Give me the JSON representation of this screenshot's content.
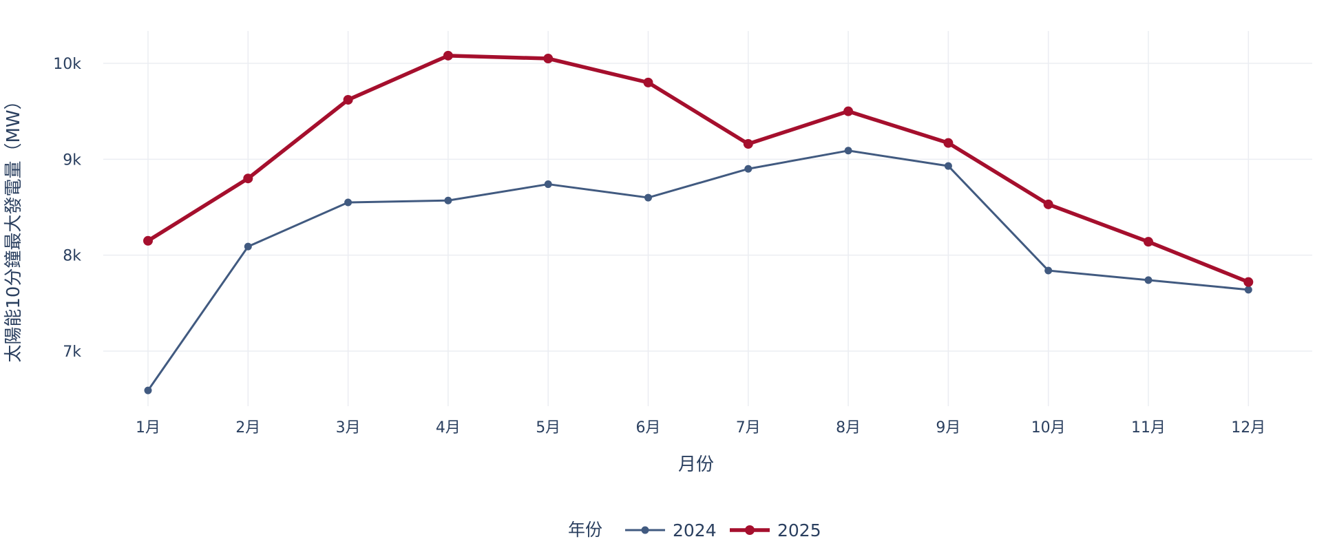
{
  "chart_data": {
    "type": "line",
    "categories": [
      "1月",
      "2月",
      "3月",
      "4月",
      "5月",
      "6月",
      "7月",
      "8月",
      "9月",
      "10月",
      "11月",
      "12月"
    ],
    "series": [
      {
        "name": "2024",
        "color": "#415a80",
        "values": [
          6590,
          8090,
          8550,
          8570,
          8740,
          8600,
          8900,
          9090,
          8930,
          7840,
          7740,
          7640
        ]
      },
      {
        "name": "2025",
        "color": "#a50f2d",
        "values": [
          8150,
          8800,
          9620,
          10080,
          10050,
          9800,
          9160,
          9500,
          9170,
          8530,
          8140,
          7720
        ]
      }
    ],
    "xlabel": "月份",
    "ylabel": "太陽能10分鐘最大發電量（MW）",
    "ylim": [
      6500,
      10300
    ],
    "yticks": [
      {
        "value": 7000,
        "label": "7k"
      },
      {
        "value": 8000,
        "label": "8k"
      },
      {
        "value": 9000,
        "label": "9k"
      },
      {
        "value": 10000,
        "label": "10k"
      }
    ],
    "grid": true,
    "legend": {
      "title": "年份",
      "position": "bottom-center"
    }
  }
}
